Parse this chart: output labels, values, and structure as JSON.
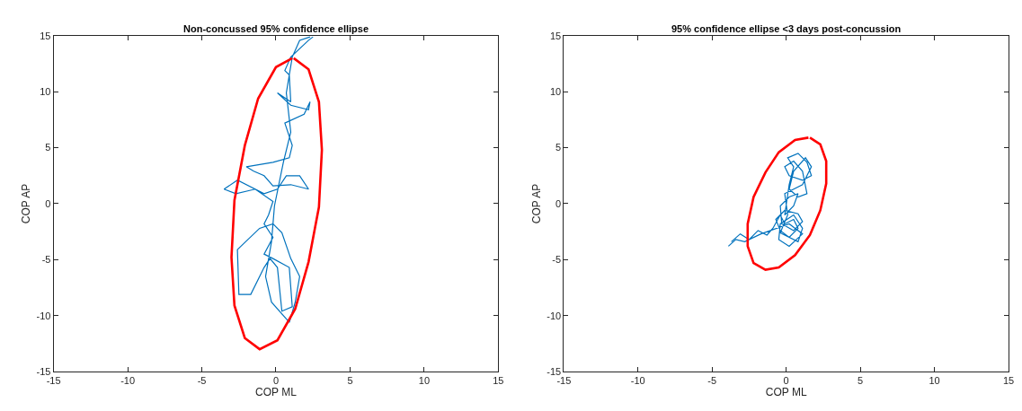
{
  "chart_data": [
    {
      "type": "line",
      "title": "Non-concussed 95% confidence ellipse",
      "xlabel": "COP ML",
      "ylabel": "COP AP",
      "xlim": [
        -15,
        15
      ],
      "ylim": [
        -15,
        15
      ],
      "xticks": [
        -15,
        -10,
        -5,
        0,
        5,
        10,
        15
      ],
      "yticks": [
        -15,
        -10,
        -5,
        0,
        5,
        10,
        15
      ],
      "marker": "none",
      "line_style": "solid",
      "series": [
        {
          "color": "#0072bd",
          "x": [
            2.5,
            2.2,
            1.0,
            0.6,
            0.9,
            1.0,
            0.1,
            1.0,
            2.2,
            2.3,
            1.9,
            0.6,
            1.1,
            0.9,
            -0.2,
            -2.0,
            -1.5,
            -0.8,
            -0.2,
            1.0,
            2.2,
            1.6,
            0.7,
            0.1,
            -0.8,
            -2.6,
            -3.5,
            -2.7,
            -1.4,
            -0.2,
            -0.5,
            -0.8,
            -0.2,
            -0.8,
            -0.2,
            0.9,
            1.1,
            0.4,
            0.1,
            -0.4,
            -0.8,
            -1.7,
            -2.5,
            -2.6,
            -1.1,
            -0.2,
            0.4,
            1.0,
            1.6,
            1.3,
            0.9,
            -0.3,
            -0.7,
            -0.3,
            -0.1,
            0.5,
            1.0,
            0.7,
            1.1,
            1.6,
            2.3
          ],
          "values": [
            14.9,
            14.6,
            13.1,
            11.9,
            11.5,
            9.1,
            9.9,
            8.8,
            8.4,
            9.1,
            8.0,
            7.2,
            5.2,
            4.1,
            3.7,
            3.3,
            2.9,
            2.5,
            1.6,
            1.7,
            1.3,
            2.5,
            2.5,
            1.3,
            0.9,
            2.1,
            1.3,
            0.9,
            1.3,
            0.2,
            -1.0,
            -1.8,
            -3.0,
            -4.5,
            -4.9,
            -5.7,
            -9.2,
            -9.6,
            -5.7,
            -4.9,
            -5.7,
            -8.1,
            -8.1,
            -4.1,
            -2.2,
            -1.8,
            -2.6,
            -4.9,
            -6.5,
            -8.8,
            -10.6,
            -8.8,
            -6.5,
            -3.4,
            -0.2,
            3.7,
            6.4,
            9.9,
            13.1,
            14.6,
            14.9
          ]
        },
        {
          "color": "#ff0000",
          "x": [
            1.2,
            2.2,
            2.9,
            3.1,
            2.9,
            2.2,
            1.3,
            0.1,
            -1.1,
            -2.1,
            -2.8,
            -3.0,
            -2.8,
            -2.1,
            -1.2,
            0.0,
            1.1
          ],
          "values": [
            13.0,
            12.0,
            9.1,
            4.8,
            -0.3,
            -5.2,
            -9.4,
            -12.2,
            -13.0,
            -12.0,
            -9.1,
            -4.8,
            0.3,
            5.2,
            9.4,
            12.2,
            13.0
          ]
        }
      ]
    },
    {
      "type": "line",
      "title": "95% confidence ellipse <3 days post-concussion",
      "xlabel": "COP ML",
      "ylabel": "COP AP",
      "xlim": [
        -15,
        15
      ],
      "ylim": [
        -15,
        15
      ],
      "xticks": [
        -15,
        -10,
        -5,
        0,
        5,
        10,
        15
      ],
      "yticks": [
        -15,
        -10,
        -5,
        0,
        5,
        10,
        15
      ],
      "marker": "none",
      "line_style": "solid",
      "series": [
        {
          "color": "#0072bd",
          "x": [
            -3.7,
            -3.1,
            -2.5,
            -1.9,
            -1.3,
            -0.9,
            -0.4,
            -0.1,
            0.5,
            0.8,
            0.2,
            -0.4,
            -0.7,
            -0.1,
            0.8,
            1.1,
            0.5,
            -0.3,
            -0.4,
            0.2,
            0.8,
            0.5,
            -0.1,
            0.2,
            0.5,
            0.1,
            0.8,
            1.4,
            1.7,
            1.1,
            0.2,
            -0.1,
            0.5,
            1.1,
            1.4,
            0.8,
            0.2,
            0.5,
            1.3,
            1.7,
            1.1,
            -0.1,
            0.1,
            -0.4,
            0.8,
            1.1,
            0.5,
            -0.4,
            -0.5,
            0.2,
            1.1,
            0.2,
            -1.7,
            -2.8,
            -3.4,
            -3.9
          ],
          "values": [
            -3.4,
            -2.7,
            -3.2,
            -2.4,
            -2.8,
            -2.2,
            -1.0,
            -1.8,
            -1.4,
            -2.2,
            -3.0,
            -2.4,
            -1.4,
            -0.6,
            -0.9,
            -1.6,
            -2.4,
            -1.8,
            -0.2,
            0.6,
            0.9,
            -0.2,
            -1.0,
            1.7,
            3.3,
            4.1,
            4.5,
            3.7,
            2.5,
            2.1,
            2.5,
            3.3,
            3.8,
            2.9,
            0.9,
            0.6,
            1.3,
            2.9,
            4.1,
            3.3,
            1.7,
            0.9,
            -1.0,
            -2.6,
            -3.4,
            -2.2,
            -1.0,
            -1.8,
            -3.2,
            -3.8,
            -2.7,
            -1.8,
            -2.7,
            -3.4,
            -3.2,
            -3.8
          ]
        },
        {
          "color": "#ff0000",
          "x": [
            1.6,
            2.3,
            2.7,
            2.7,
            2.3,
            1.6,
            0.6,
            -0.5,
            -1.4,
            -2.2,
            -2.6,
            -2.6,
            -2.2,
            -1.4,
            -0.5,
            0.6,
            1.5
          ],
          "values": [
            5.9,
            5.3,
            3.8,
            1.8,
            -0.6,
            -2.8,
            -4.6,
            -5.7,
            -5.9,
            -5.3,
            -3.8,
            -1.8,
            0.6,
            2.8,
            4.6,
            5.7,
            5.9
          ]
        }
      ]
    }
  ]
}
